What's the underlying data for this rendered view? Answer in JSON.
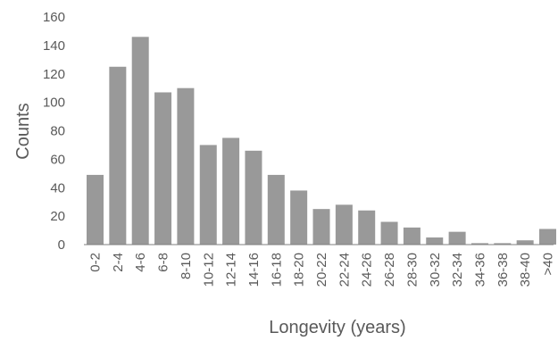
{
  "chart_data": {
    "type": "bar",
    "categories": [
      "0-2",
      "2-4",
      "4-6",
      "6-8",
      "8-10",
      "10-12",
      "12-14",
      "14-16",
      "16-18",
      "18-20",
      "20-22",
      "22-24",
      "24-26",
      "26-28",
      "28-30",
      "30-32",
      "32-34",
      "34-36",
      "36-38",
      "38-40",
      ">40"
    ],
    "values": [
      49,
      125,
      146,
      107,
      110,
      70,
      75,
      66,
      49,
      38,
      25,
      28,
      24,
      16,
      12,
      5,
      9,
      1,
      1,
      3,
      11
    ],
    "xlabel": "Longevity (years)",
    "ylabel": "Counts",
    "ylim": [
      0,
      160
    ],
    "yticks": [
      0,
      20,
      40,
      60,
      80,
      100,
      120,
      140,
      160
    ],
    "grid": false,
    "legend": "none",
    "bar_color": "#999999",
    "text_color": "#595959"
  }
}
